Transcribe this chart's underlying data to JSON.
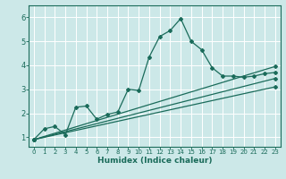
{
  "title": "",
  "xlabel": "Humidex (Indice chaleur)",
  "bg_color": "#cce8e8",
  "grid_color": "#ffffff",
  "line_color": "#1a6b5a",
  "xlim": [
    -0.5,
    23.5
  ],
  "ylim": [
    0.6,
    6.5
  ],
  "xticks": [
    0,
    1,
    2,
    3,
    4,
    5,
    6,
    7,
    8,
    9,
    10,
    11,
    12,
    13,
    14,
    15,
    16,
    17,
    18,
    19,
    20,
    21,
    22,
    23
  ],
  "yticks": [
    1,
    2,
    3,
    4,
    5,
    6
  ],
  "series1_x": [
    0,
    1,
    2,
    3,
    4,
    5,
    6,
    7,
    8,
    9,
    10,
    11,
    12,
    13,
    14,
    15,
    16,
    17,
    18,
    19,
    20,
    21,
    22,
    23
  ],
  "series1_y": [
    0.9,
    1.35,
    1.45,
    1.1,
    2.25,
    2.3,
    1.75,
    1.95,
    2.05,
    3.0,
    2.95,
    4.35,
    5.2,
    5.45,
    5.95,
    5.0,
    4.65,
    3.9,
    3.55,
    3.55,
    3.5,
    3.55,
    3.65,
    3.7
  ],
  "series2_x": [
    0,
    23
  ],
  "series2_y": [
    0.9,
    3.45
  ],
  "series3_x": [
    0,
    23
  ],
  "series3_y": [
    0.9,
    3.95
  ],
  "series4_x": [
    0,
    23
  ],
  "series4_y": [
    0.9,
    3.1
  ]
}
